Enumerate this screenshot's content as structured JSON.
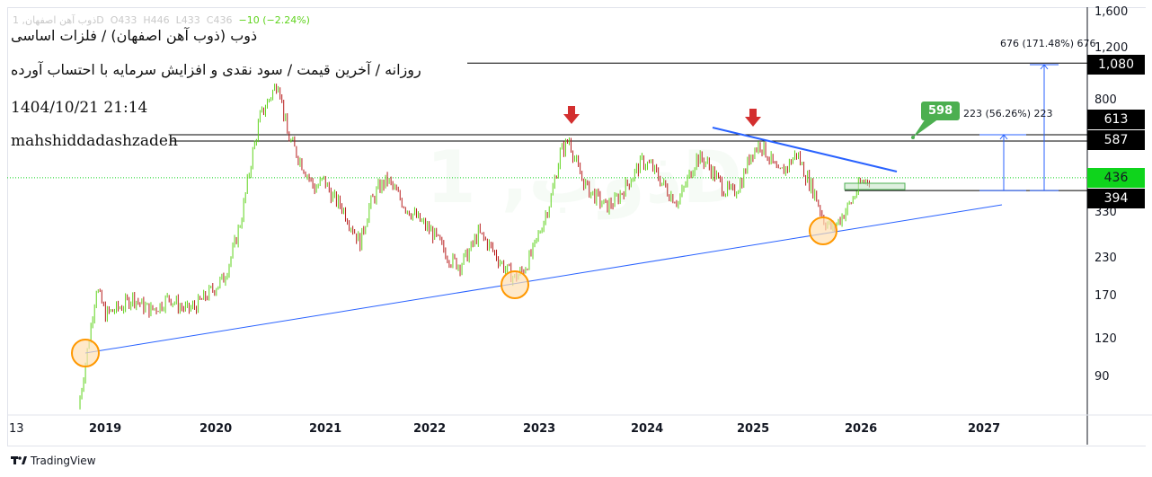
{
  "legend": {
    "symbol": "ذوب آهن اصفهان, 1",
    "interval": "D",
    "open": "O433",
    "high": "H446",
    "low": "L433",
    "close": "C436",
    "change": "−10 (−2.24%)"
  },
  "annotations": {
    "title": "ذوب (ذوب آهن اصفهان) / فلزات اساسی",
    "subtitle": "روزانه / آخرین قیمت / سود نقدی و افزایش سرمایه با احتساب آورده",
    "datetime": "1404/10/21 21:14",
    "author": "mahshiddadashzadeh"
  },
  "price_labels": {
    "p1080": "1,080",
    "p613": "613",
    "p587": "587",
    "p436": "436",
    "p394": "394"
  },
  "price_ticks": [
    "1,600",
    "1,200",
    "800",
    "330",
    "230",
    "170",
    "120",
    "90"
  ],
  "time_axis": {
    "first": "13",
    "years": [
      "2019",
      "2020",
      "2021",
      "2022",
      "2023",
      "2024",
      "2025",
      "2026",
      "2027"
    ]
  },
  "measures": {
    "small": "223 (56.26%) 223",
    "large": "676 (171.48%) 676"
  },
  "callout": "598",
  "brand": "TradingView",
  "colors": {
    "up": "#4caf50",
    "upBright": "#5fd31c",
    "down": "#b71c1c",
    "trend": "#2962ff",
    "circle": "#ff9800",
    "arrow": "#d32f2f",
    "last": "#0fd41c"
  },
  "chart_data": {
    "type": "candlestick",
    "scale": "log",
    "ylim": [
      70,
      1600
    ],
    "interval": "monthly approximation of daily candles",
    "start": "2018-10",
    "closes": [
      70,
      111,
      183,
      148,
      153,
      159,
      170,
      159,
      153,
      159,
      170,
      159,
      153,
      159,
      170,
      183,
      197,
      243,
      323,
      496,
      705,
      815,
      940,
      613,
      531,
      461,
      400,
      429,
      373,
      347,
      301,
      261,
      347,
      400,
      429,
      386,
      347,
      323,
      301,
      281,
      252,
      227,
      219,
      243,
      281,
      261,
      235,
      212,
      197,
      212,
      243,
      301,
      373,
      531,
      590,
      461,
      400,
      373,
      347,
      360,
      400,
      445,
      496,
      478,
      429,
      386,
      360,
      429,
      512,
      496,
      445,
      400,
      386,
      429,
      531,
      571,
      512,
      445,
      478,
      531,
      445,
      386,
      312,
      291,
      323,
      360,
      414,
      436
    ],
    "levels": [
      1080,
      613,
      587,
      436,
      394
    ],
    "last_price": 436
  }
}
